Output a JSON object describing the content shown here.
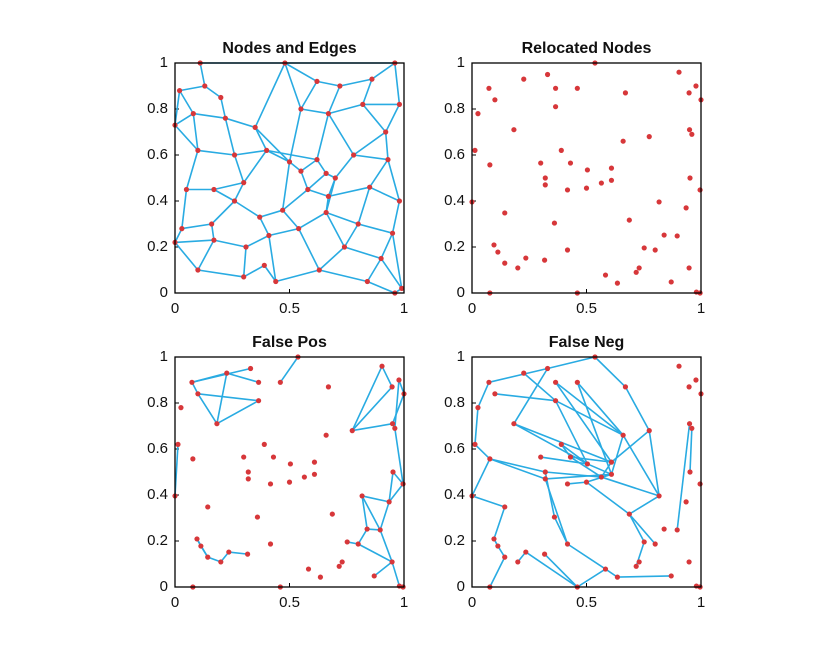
{
  "chart_data": [
    {
      "type": "scatter",
      "title": "Nodes and Edges",
      "color": "#d7373a",
      "edge_color": "#29abe2",
      "xlim": [
        0,
        1
      ],
      "ylim": [
        0,
        1
      ],
      "xticks": [
        0,
        0.5,
        1
      ],
      "yticks": [
        0,
        0.2,
        0.4,
        0.6,
        0.8,
        1
      ],
      "x": [
        0.11,
        0.48,
        0.96,
        0.02,
        0.13,
        0.2,
        0.62,
        0.72,
        0.86,
        0.98,
        0.0,
        0.08,
        0.22,
        0.35,
        0.55,
        0.67,
        0.82,
        0.92,
        0.1,
        0.26,
        0.4,
        0.5,
        0.55,
        0.62,
        0.66,
        0.7,
        0.78,
        0.93,
        0.05,
        0.17,
        0.3,
        0.58,
        0.67,
        0.85,
        0.98,
        0.03,
        0.16,
        0.26,
        0.37,
        0.47,
        0.66,
        0.8,
        0.95,
        0.0,
        0.17,
        0.31,
        0.41,
        0.54,
        0.74,
        0.9,
        0.1,
        0.3,
        0.39,
        0.44,
        0.63,
        0.84,
        0.96,
        0.99
      ],
      "y": [
        1.0,
        1.0,
        1.0,
        0.88,
        0.9,
        0.85,
        0.92,
        0.9,
        0.93,
        0.82,
        0.73,
        0.78,
        0.76,
        0.72,
        0.8,
        0.78,
        0.82,
        0.7,
        0.62,
        0.6,
        0.62,
        0.57,
        0.53,
        0.58,
        0.52,
        0.5,
        0.6,
        0.58,
        0.45,
        0.45,
        0.48,
        0.45,
        0.42,
        0.46,
        0.4,
        0.28,
        0.3,
        0.4,
        0.33,
        0.36,
        0.35,
        0.3,
        0.26,
        0.22,
        0.23,
        0.2,
        0.25,
        0.28,
        0.2,
        0.15,
        0.1,
        0.07,
        0.12,
        0.05,
        0.1,
        0.05,
        0.0,
        0.02
      ],
      "edges": [
        [
          0,
          1
        ],
        [
          1,
          2
        ],
        [
          0,
          4
        ],
        [
          3,
          4
        ],
        [
          3,
          10
        ],
        [
          4,
          5
        ],
        [
          5,
          12
        ],
        [
          3,
          11
        ],
        [
          10,
          11
        ],
        [
          11,
          12
        ],
        [
          11,
          18
        ],
        [
          12,
          13
        ],
        [
          13,
          20
        ],
        [
          1,
          13
        ],
        [
          1,
          14
        ],
        [
          1,
          6
        ],
        [
          6,
          7
        ],
        [
          7,
          8
        ],
        [
          8,
          2
        ],
        [
          2,
          9
        ],
        [
          6,
          14
        ],
        [
          14,
          15
        ],
        [
          7,
          15
        ],
        [
          15,
          16
        ],
        [
          8,
          16
        ],
        [
          16,
          9
        ],
        [
          9,
          17
        ],
        [
          16,
          17
        ],
        [
          17,
          27
        ],
        [
          15,
          23
        ],
        [
          14,
          21
        ],
        [
          13,
          21
        ],
        [
          20,
          21
        ],
        [
          21,
          22
        ],
        [
          22,
          23
        ],
        [
          23,
          24
        ],
        [
          24,
          25
        ],
        [
          25,
          26
        ],
        [
          26,
          17
        ],
        [
          26,
          27
        ],
        [
          27,
          34
        ],
        [
          24,
          31
        ],
        [
          22,
          31
        ],
        [
          31,
          32
        ],
        [
          25,
          32
        ],
        [
          32,
          33
        ],
        [
          33,
          27
        ],
        [
          33,
          34
        ],
        [
          19,
          20
        ],
        [
          12,
          19
        ],
        [
          18,
          19
        ],
        [
          18,
          28
        ],
        [
          10,
          18
        ],
        [
          28,
          29
        ],
        [
          29,
          30
        ],
        [
          19,
          30
        ],
        [
          30,
          20
        ],
        [
          30,
          37
        ],
        [
          29,
          37
        ],
        [
          28,
          35
        ],
        [
          35,
          36
        ],
        [
          36,
          37
        ],
        [
          37,
          38
        ],
        [
          38,
          39
        ],
        [
          39,
          21
        ],
        [
          39,
          31
        ],
        [
          39,
          47
        ],
        [
          40,
          32
        ],
        [
          40,
          41
        ],
        [
          41,
          33
        ],
        [
          41,
          42
        ],
        [
          42,
          34
        ],
        [
          35,
          43
        ],
        [
          43,
          44
        ],
        [
          44,
          36
        ],
        [
          44,
          45
        ],
        [
          45,
          46
        ],
        [
          46,
          38
        ],
        [
          46,
          47
        ],
        [
          47,
          40
        ],
        [
          40,
          48
        ],
        [
          48,
          41
        ],
        [
          48,
          49
        ],
        [
          49,
          42
        ],
        [
          43,
          50
        ],
        [
          50,
          44
        ],
        [
          50,
          51
        ],
        [
          51,
          45
        ],
        [
          51,
          52
        ],
        [
          52,
          53
        ],
        [
          53,
          46
        ],
        [
          53,
          54
        ],
        [
          54,
          47
        ],
        [
          54,
          48
        ],
        [
          54,
          55
        ],
        [
          55,
          49
        ],
        [
          55,
          56
        ],
        [
          56,
          57
        ],
        [
          57,
          42
        ],
        [
          49,
          57
        ],
        [
          20,
          23
        ],
        [
          25,
          40
        ],
        [
          15,
          26
        ]
      ]
    },
    {
      "type": "scatter",
      "title": "Relocated Nodes",
      "color": "#d7373a",
      "edge_color": "#29abe2",
      "xlim": [
        0,
        1
      ],
      "ylim": [
        0,
        1
      ],
      "xticks": [
        0,
        0.5,
        1
      ],
      "yticks": [
        0,
        0.2,
        0.4,
        0.6,
        0.8,
        1
      ],
      "x": [
        0.537,
        0.33,
        0.226,
        0.074,
        0.1,
        0.365,
        0.46,
        0.67,
        0.904,
        0.978,
        0.948,
        1.0,
        0.365,
        0.026,
        0.183,
        0.95,
        0.96,
        0.774,
        0.66,
        0.013,
        0.39,
        0.3,
        0.078,
        0.43,
        0.504,
        0.609,
        0.609,
        0.32,
        0.32,
        0.565,
        0.417,
        0.5,
        0.952,
        0.996,
        0.0,
        0.817,
        0.935,
        0.143,
        0.687,
        0.36,
        0.896,
        0.096,
        0.113,
        0.417,
        0.839,
        0.752,
        0.8,
        0.235,
        0.317,
        0.143,
        0.2,
        0.73,
        0.717,
        0.583,
        0.635,
        0.87,
        0.948,
        0.98,
        0.078,
        0.46,
        0.996
      ],
      "y": [
        1.0,
        0.95,
        0.93,
        0.89,
        0.84,
        0.89,
        0.89,
        0.87,
        0.96,
        0.9,
        0.87,
        0.84,
        0.81,
        0.78,
        0.71,
        0.71,
        0.69,
        0.68,
        0.66,
        0.62,
        0.62,
        0.565,
        0.557,
        0.565,
        0.535,
        0.543,
        0.49,
        0.5,
        0.47,
        0.478,
        0.448,
        0.456,
        0.5,
        0.448,
        0.396,
        0.396,
        0.37,
        0.348,
        0.317,
        0.304,
        0.248,
        0.209,
        0.178,
        0.187,
        0.252,
        0.196,
        0.187,
        0.152,
        0.143,
        0.13,
        0.109,
        0.109,
        0.09,
        0.078,
        0.043,
        0.048,
        0.109,
        0.004,
        0.0,
        0.0,
        0.0
      ],
      "edges": []
    },
    {
      "type": "scatter",
      "title": "False Pos",
      "color": "#d7373a",
      "edge_color": "#29abe2",
      "xlim": [
        0,
        1
      ],
      "ylim": [
        0,
        1
      ],
      "xticks": [
        0,
        0.5,
        1
      ],
      "yticks": [
        0,
        0.2,
        0.4,
        0.6,
        0.8,
        1
      ],
      "x": [
        0.537,
        0.33,
        0.226,
        0.074,
        0.1,
        0.365,
        0.46,
        0.67,
        0.904,
        0.978,
        0.948,
        1.0,
        0.365,
        0.026,
        0.183,
        0.95,
        0.96,
        0.774,
        0.66,
        0.013,
        0.39,
        0.3,
        0.078,
        0.43,
        0.504,
        0.609,
        0.609,
        0.32,
        0.32,
        0.565,
        0.417,
        0.5,
        0.952,
        0.996,
        0.0,
        0.817,
        0.935,
        0.143,
        0.687,
        0.36,
        0.896,
        0.096,
        0.113,
        0.417,
        0.839,
        0.752,
        0.8,
        0.235,
        0.317,
        0.143,
        0.2,
        0.73,
        0.717,
        0.583,
        0.635,
        0.87,
        0.948,
        0.98,
        0.078,
        0.46,
        0.996
      ],
      "y": [
        1.0,
        0.95,
        0.93,
        0.89,
        0.84,
        0.89,
        0.89,
        0.87,
        0.96,
        0.9,
        0.87,
        0.84,
        0.81,
        0.78,
        0.71,
        0.71,
        0.69,
        0.68,
        0.66,
        0.62,
        0.62,
        0.565,
        0.557,
        0.565,
        0.535,
        0.543,
        0.49,
        0.5,
        0.47,
        0.478,
        0.448,
        0.456,
        0.5,
        0.448,
        0.396,
        0.396,
        0.37,
        0.348,
        0.317,
        0.304,
        0.248,
        0.209,
        0.178,
        0.187,
        0.252,
        0.196,
        0.187,
        0.152,
        0.143,
        0.13,
        0.109,
        0.109,
        0.09,
        0.078,
        0.043,
        0.048,
        0.109,
        0.004,
        0.0,
        0.0,
        0.0
      ],
      "edges": [
        [
          3,
          4
        ],
        [
          3,
          2
        ],
        [
          4,
          14
        ],
        [
          2,
          14
        ],
        [
          4,
          12
        ],
        [
          2,
          5
        ],
        [
          14,
          12
        ],
        [
          3,
          1
        ],
        [
          8,
          10
        ],
        [
          9,
          11
        ],
        [
          10,
          17
        ],
        [
          8,
          17
        ],
        [
          17,
          15
        ],
        [
          15,
          16
        ],
        [
          16,
          33
        ],
        [
          33,
          32
        ],
        [
          32,
          36
        ],
        [
          36,
          35
        ],
        [
          35,
          40
        ],
        [
          40,
          44
        ],
        [
          44,
          46
        ],
        [
          46,
          56
        ],
        [
          56,
          55
        ],
        [
          57,
          56
        ],
        [
          40,
          56
        ],
        [
          36,
          40
        ],
        [
          11,
          15
        ],
        [
          9,
          16
        ],
        [
          41,
          42
        ],
        [
          42,
          49
        ],
        [
          49,
          50
        ],
        [
          50,
          47
        ],
        [
          47,
          48
        ],
        [
          41,
          49
        ],
        [
          19,
          34
        ],
        [
          6,
          0
        ],
        [
          35,
          44
        ],
        [
          33,
          36
        ],
        [
          45,
          46
        ]
      ]
    },
    {
      "type": "scatter",
      "title": "False Neg",
      "color": "#d7373a",
      "edge_color": "#29abe2",
      "xlim": [
        0,
        1
      ],
      "ylim": [
        0,
        1
      ],
      "xticks": [
        0,
        0.5,
        1
      ],
      "yticks": [
        0,
        0.2,
        0.4,
        0.6,
        0.8,
        1
      ],
      "x": [
        0.537,
        0.33,
        0.226,
        0.074,
        0.1,
        0.365,
        0.46,
        0.67,
        0.904,
        0.978,
        0.948,
        1.0,
        0.365,
        0.026,
        0.183,
        0.95,
        0.96,
        0.774,
        0.66,
        0.013,
        0.39,
        0.3,
        0.078,
        0.43,
        0.504,
        0.609,
        0.609,
        0.32,
        0.32,
        0.565,
        0.417,
        0.5,
        0.952,
        0.996,
        0.0,
        0.817,
        0.935,
        0.143,
        0.687,
        0.36,
        0.896,
        0.096,
        0.113,
        0.417,
        0.839,
        0.752,
        0.8,
        0.235,
        0.317,
        0.143,
        0.2,
        0.73,
        0.717,
        0.583,
        0.635,
        0.87,
        0.948,
        0.98,
        0.078,
        0.46,
        0.996
      ],
      "y": [
        1.0,
        0.95,
        0.93,
        0.89,
        0.84,
        0.89,
        0.89,
        0.87,
        0.96,
        0.9,
        0.87,
        0.84,
        0.81,
        0.78,
        0.71,
        0.71,
        0.69,
        0.68,
        0.66,
        0.62,
        0.62,
        0.565,
        0.557,
        0.565,
        0.535,
        0.543,
        0.49,
        0.5,
        0.47,
        0.478,
        0.448,
        0.456,
        0.5,
        0.448,
        0.396,
        0.396,
        0.37,
        0.348,
        0.317,
        0.304,
        0.248,
        0.209,
        0.178,
        0.187,
        0.252,
        0.196,
        0.187,
        0.152,
        0.143,
        0.13,
        0.109,
        0.109,
        0.09,
        0.078,
        0.043,
        0.048,
        0.109,
        0.004,
        0.0,
        0.0,
        0.0
      ],
      "edges": [
        [
          3,
          13
        ],
        [
          13,
          19
        ],
        [
          19,
          22
        ],
        [
          22,
          34
        ],
        [
          34,
          37
        ],
        [
          37,
          41
        ],
        [
          41,
          42
        ],
        [
          42,
          49
        ],
        [
          3,
          1
        ],
        [
          1,
          0
        ],
        [
          0,
          7
        ],
        [
          7,
          17
        ],
        [
          17,
          35
        ],
        [
          59,
          53
        ],
        [
          53,
          54
        ],
        [
          54,
          55
        ],
        [
          20,
          24
        ],
        [
          21,
          24
        ],
        [
          23,
          25
        ],
        [
          24,
          26
        ],
        [
          25,
          29
        ],
        [
          27,
          29
        ],
        [
          28,
          26
        ],
        [
          30,
          31
        ],
        [
          31,
          26
        ],
        [
          14,
          24
        ],
        [
          14,
          25
        ],
        [
          22,
          27
        ],
        [
          22,
          28
        ],
        [
          12,
          18
        ],
        [
          5,
          18
        ],
        [
          18,
          26
        ],
        [
          17,
          25
        ],
        [
          6,
          18
        ],
        [
          27,
          39
        ],
        [
          28,
          43
        ],
        [
          39,
          43
        ],
        [
          43,
          53
        ],
        [
          31,
          38
        ],
        [
          38,
          45
        ],
        [
          45,
          52
        ],
        [
          46,
          38
        ],
        [
          35,
          29
        ],
        [
          15,
          40
        ],
        [
          16,
          32
        ],
        [
          1,
          14
        ],
        [
          47,
          59
        ],
        [
          4,
          12
        ],
        [
          2,
          12
        ],
        [
          12,
          24
        ],
        [
          5,
          25
        ],
        [
          6,
          26
        ],
        [
          18,
          35
        ],
        [
          35,
          38
        ],
        [
          20,
          23
        ],
        [
          23,
          29
        ],
        [
          49,
          58
        ],
        [
          48,
          59
        ],
        [
          50,
          47
        ]
      ]
    }
  ]
}
